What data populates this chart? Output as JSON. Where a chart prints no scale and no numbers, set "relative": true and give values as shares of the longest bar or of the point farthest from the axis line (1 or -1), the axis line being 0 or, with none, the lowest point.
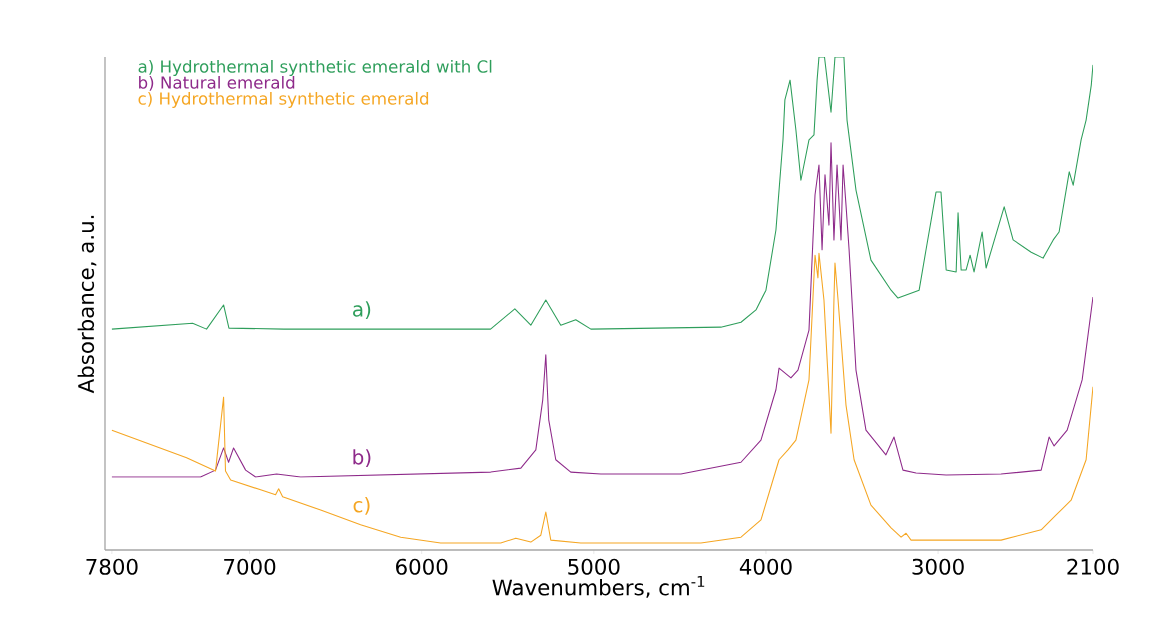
{
  "chart_data": {
    "type": "line",
    "xlabel": "Wavenumbers, cm$^{-1}$",
    "ylabel": "Absorbance, a.u.",
    "relative": true,
    "xlim": [
      7840,
      2100
    ],
    "xticks": [
      7800,
      7000,
      6000,
      5000,
      4000,
      3000,
      2100
    ],
    "legend": "top left",
    "grid": false,
    "marker": "none",
    "line_style": "solid",
    "series": [
      {
        "name": "a) Hydrothermal synthetic emerald with Cl",
        "color": "#2e9e5b",
        "x": [
          7800,
          7331,
          7250,
          7151,
          7120,
          6800,
          5600,
          5459,
          5366,
          5279,
          5192,
          5105,
          5017,
          4262,
          4145,
          4058,
          4000,
          3942,
          3901,
          3890,
          3860,
          3826,
          3797,
          3750,
          3721,
          3703,
          3692,
          3660,
          3622,
          3599,
          3547,
          3529,
          3477,
          3390,
          3273,
          3233,
          3110,
          3070,
          3012,
          2983,
          2953,
          2895,
          2884,
          2866,
          2837,
          2814,
          2791,
          2744,
          2721,
          2616,
          2564,
          2459,
          2390,
          2331,
          2297,
          2238,
          2215,
          2169,
          2140,
          2110,
          2100
        ],
        "values": [
          0.448,
          0.46,
          0.448,
          0.497,
          0.45,
          0.448,
          0.448,
          0.489,
          0.456,
          0.507,
          0.456,
          0.467,
          0.448,
          0.452,
          0.462,
          0.487,
          0.527,
          0.649,
          0.832,
          0.913,
          0.953,
          0.852,
          0.75,
          0.832,
          0.842,
          0.953,
          1,
          1,
          0.888,
          1,
          1,
          0.872,
          0.73,
          0.588,
          0.527,
          0.511,
          0.527,
          0.609,
          0.726,
          0.726,
          0.568,
          0.564,
          0.684,
          0.568,
          0.568,
          0.598,
          0.564,
          0.645,
          0.572,
          0.696,
          0.629,
          0.604,
          0.592,
          0.629,
          0.645,
          0.767,
          0.74,
          0.832,
          0.872,
          0.943,
          0.984
        ]
      },
      {
        "name": "b) Natural emerald",
        "color": "#8e2a8a",
        "x": [
          7800,
          7285,
          7198,
          7151,
          7122,
          7093,
          7023,
          6965,
          6843,
          6703,
          5599,
          5424,
          5337,
          5297,
          5279,
          5262,
          5221,
          5134,
          4959,
          4494,
          4145,
          4029,
          3942,
          3924,
          3855,
          3814,
          3750,
          3727,
          3715,
          3692,
          3674,
          3657,
          3634,
          3622,
          3605,
          3587,
          3564,
          3552,
          3535,
          3517,
          3477,
          3419,
          3303,
          3256,
          3204,
          3128,
          2953,
          2634,
          2401,
          2355,
          2326,
          2250,
          2163,
          2100
        ],
        "values": [
          0.148,
          0.148,
          0.162,
          0.207,
          0.178,
          0.207,
          0.162,
          0.148,
          0.154,
          0.148,
          0.158,
          0.166,
          0.203,
          0.304,
          0.396,
          0.264,
          0.183,
          0.158,
          0.154,
          0.154,
          0.178,
          0.223,
          0.325,
          0.369,
          0.349,
          0.365,
          0.446,
          0.629,
          0.72,
          0.781,
          0.609,
          0.761,
          0.659,
          0.826,
          0.629,
          0.781,
          0.629,
          0.781,
          0.7,
          0.609,
          0.365,
          0.243,
          0.193,
          0.229,
          0.162,
          0.156,
          0.152,
          0.154,
          0.162,
          0.229,
          0.211,
          0.243,
          0.345,
          0.513
        ]
      },
      {
        "name": "c) Hydrothermal synthetic emerald",
        "color": "#f5a623",
        "x": [
          7800,
          7366,
          7198,
          7151,
          7140,
          7110,
          6936,
          6849,
          6831,
          6808,
          6587,
          6355,
          6122,
          5890,
          5541,
          5453,
          5366,
          5308,
          5279,
          5250,
          5076,
          4378,
          4145,
          4029,
          3924,
          3872,
          3826,
          3750,
          3715,
          3698,
          3692,
          3663,
          3622,
          3605,
          3599,
          3581,
          3535,
          3488,
          3390,
          3273,
          3215,
          3186,
          3157,
          2634,
          2401,
          2314,
          2227,
          2140,
          2100
        ],
        "values": [
          0.243,
          0.187,
          0.16,
          0.31,
          0.16,
          0.142,
          0.122,
          0.112,
          0.124,
          0.108,
          0.081,
          0.051,
          0.026,
          0.014,
          0.014,
          0.024,
          0.016,
          0.03,
          0.077,
          0.02,
          0.014,
          0.014,
          0.026,
          0.061,
          0.183,
          0.203,
          0.223,
          0.345,
          0.598,
          0.552,
          0.602,
          0.507,
          0.237,
          0.507,
          0.582,
          0.507,
          0.294,
          0.183,
          0.091,
          0.045,
          0.026,
          0.034,
          0.02,
          0.02,
          0.041,
          0.071,
          0.101,
          0.183,
          0.331
        ]
      }
    ],
    "annotations": [
      "a)",
      "b)",
      "c)"
    ]
  }
}
